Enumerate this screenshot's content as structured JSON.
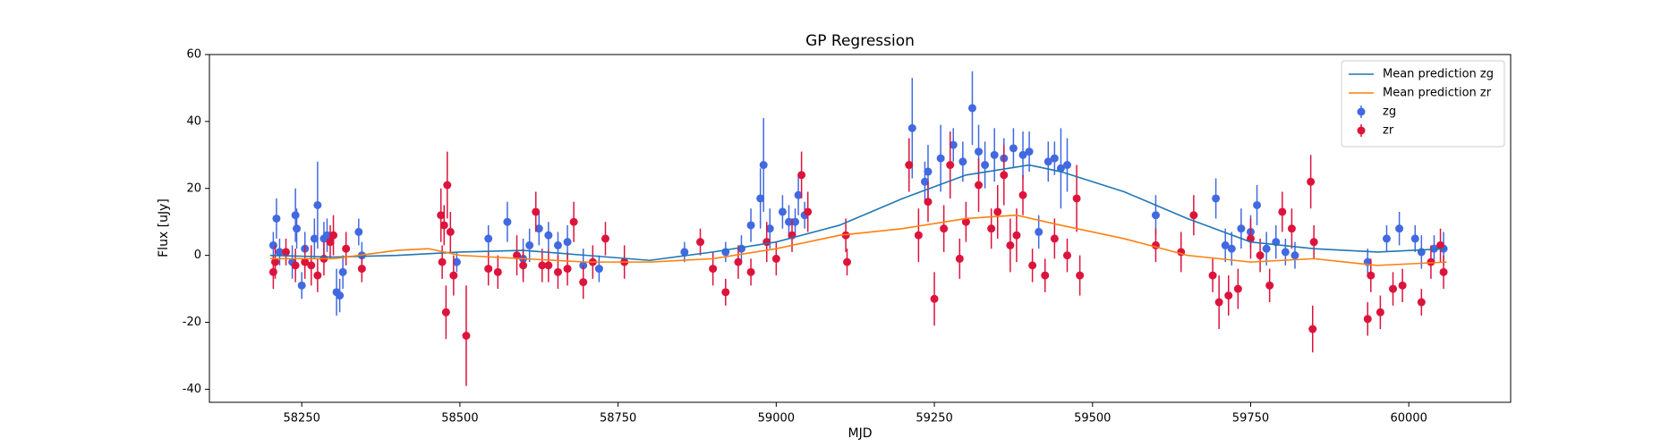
{
  "chart_data": {
    "type": "errorbar",
    "title": "GP Regression",
    "x_label": "MJD",
    "y_label": "Flux [uJy]",
    "xlim": [
      58104,
      60161
    ],
    "ylim": [
      -43.9,
      60
    ],
    "xticks": [
      58250,
      58500,
      58750,
      59000,
      59250,
      59500,
      59750,
      60000
    ],
    "yticks": [
      -40,
      -20,
      0,
      20,
      40,
      60
    ],
    "legend": "upper right",
    "series": [
      {
        "name": "Mean prediction zg",
        "style": "line",
        "color": "#1f77b4",
        "x": [
          58200,
          58300,
          58400,
          58500,
          58600,
          58700,
          58800,
          58900,
          59000,
          59100,
          59200,
          59300,
          59400,
          59450,
          59550,
          59650,
          59750,
          59850,
          59950,
          60060
        ],
        "values": [
          0,
          -0.5,
          0,
          1,
          1.5,
          0,
          -1.5,
          1,
          4,
          9,
          17,
          24,
          27,
          25,
          19,
          11,
          4,
          2,
          1,
          2
        ]
      },
      {
        "name": "Mean prediction zr",
        "style": "line",
        "color": "#ff7f0e",
        "x": [
          58200,
          58300,
          58400,
          58450,
          58500,
          58600,
          58700,
          58800,
          58900,
          59000,
          59100,
          59200,
          59300,
          59380,
          59450,
          59550,
          59650,
          59750,
          59850,
          59950,
          60060
        ],
        "values": [
          -1,
          -1,
          1.5,
          2,
          0,
          -1,
          -2,
          -2,
          -1,
          2,
          6,
          8,
          11,
          12,
          9,
          5,
          0,
          -2,
          -1,
          -3,
          -2
        ]
      },
      {
        "name": "zg",
        "style": "errorbar",
        "color": "#4169e1",
        "x": [
          58205,
          58210,
          58215,
          58235,
          58240,
          58242,
          58250,
          58255,
          58270,
          58275,
          58285,
          58290,
          58305,
          58310,
          58315,
          58340,
          58345,
          58495,
          58545,
          58575,
          58600,
          58610,
          58625,
          58640,
          58655,
          58670,
          58695,
          58720,
          58855,
          58920,
          58945,
          58960,
          58975,
          58980,
          58990,
          59010,
          59020,
          59030,
          59035,
          59045,
          59215,
          59235,
          59240,
          59260,
          59280,
          59295,
          59310,
          59320,
          59330,
          59345,
          59360,
          59375,
          59390,
          59400,
          59415,
          59430,
          59440,
          59450,
          59460,
          59600,
          59695,
          59710,
          59720,
          59735,
          59750,
          59760,
          59775,
          59790,
          59805,
          59820,
          59935,
          59965,
          59985,
          60010,
          60020,
          60040,
          60055
        ],
        "values": [
          3,
          11,
          1,
          -2,
          12,
          8,
          -9,
          2,
          5,
          15,
          5,
          6,
          -11,
          -12,
          -5,
          7,
          0,
          -2,
          5,
          10,
          -1,
          3,
          8,
          6,
          3,
          4,
          -3,
          -4,
          1,
          1,
          2,
          9,
          17,
          27,
          8,
          13,
          10,
          10,
          18,
          12,
          38,
          22,
          25,
          29,
          33,
          28,
          44,
          31,
          27,
          30,
          29,
          32,
          30,
          31,
          7,
          28,
          29,
          26,
          27,
          12,
          17,
          3,
          2,
          8,
          7,
          15,
          2,
          4,
          1,
          0,
          -2,
          5,
          8,
          5,
          1,
          2,
          2
        ],
        "errors": [
          4,
          6,
          4,
          5,
          8,
          6,
          4,
          5,
          6,
          13,
          5,
          5,
          7,
          5,
          5,
          4,
          4,
          3,
          4,
          6,
          6,
          5,
          5,
          4,
          4,
          5,
          5,
          4,
          3,
          3,
          4,
          5,
          9,
          14,
          6,
          5,
          5,
          4,
          6,
          4,
          15,
          6,
          8,
          10,
          5,
          6,
          11,
          8,
          7,
          8,
          6,
          6,
          7,
          6,
          5,
          6,
          5,
          12,
          8,
          6,
          6,
          5,
          5,
          6,
          5,
          6,
          5,
          5,
          4,
          4,
          4,
          4,
          5,
          4,
          5,
          4,
          5
        ]
      },
      {
        "name": "zr",
        "style": "errorbar",
        "color": "#dc143c",
        "x": [
          58205,
          58208,
          58225,
          58240,
          58255,
          58265,
          58275,
          58285,
          58295,
          58300,
          58320,
          58345,
          58470,
          58472,
          58475,
          58478,
          58480,
          58485,
          58490,
          58510,
          58545,
          58560,
          58590,
          58600,
          58620,
          58630,
          58640,
          58655,
          58670,
          58680,
          58695,
          58710,
          58730,
          58760,
          58880,
          58900,
          58920,
          58940,
          58960,
          58985,
          59000,
          59025,
          59040,
          59050,
          59110,
          59112,
          59210,
          59225,
          59240,
          59250,
          59265,
          59275,
          59290,
          59300,
          59320,
          59340,
          59350,
          59360,
          59370,
          59380,
          59390,
          59405,
          59425,
          59440,
          59460,
          59475,
          59480,
          59600,
          59640,
          59660,
          59690,
          59700,
          59715,
          59730,
          59750,
          59765,
          59780,
          59800,
          59815,
          59845,
          59848,
          59850,
          59935,
          59940,
          59955,
          59975,
          59990,
          60020,
          60035,
          60050,
          60055
        ],
        "values": [
          -5,
          -2,
          1,
          -3,
          -2,
          -3,
          -6,
          -1,
          4,
          6,
          2,
          -4,
          12,
          -2,
          9,
          -17,
          21,
          7,
          -6,
          -24,
          -4,
          -5,
          0,
          -3,
          13,
          -3,
          -3,
          -5,
          -4,
          10,
          -8,
          -2,
          5,
          -2,
          4,
          -4,
          -11,
          -2,
          -5,
          4,
          -1,
          6,
          24,
          13,
          6,
          -2,
          27,
          6,
          16,
          -13,
          8,
          27,
          -1,
          10,
          21,
          8,
          13,
          24,
          3,
          6,
          18,
          -3,
          -6,
          5,
          0,
          17,
          -6,
          3,
          1,
          12,
          -6,
          -14,
          -12,
          -10,
          5,
          0,
          -9,
          13,
          8,
          22,
          -22,
          4,
          -19,
          -6,
          -17,
          -10,
          -9,
          -14,
          -2,
          3,
          -5
        ],
        "errors": [
          5,
          5,
          4,
          5,
          5,
          6,
          5,
          5,
          5,
          6,
          5,
          4,
          8,
          5,
          6,
          8,
          10,
          6,
          6,
          15,
          5,
          5,
          6,
          5,
          6,
          5,
          5,
          5,
          5,
          6,
          5,
          5,
          5,
          5,
          4,
          5,
          4,
          5,
          4,
          6,
          5,
          5,
          7,
          6,
          5,
          4,
          8,
          8,
          6,
          8,
          7,
          10,
          6,
          6,
          8,
          6,
          8,
          9,
          8,
          8,
          6,
          5,
          5,
          6,
          5,
          10,
          6,
          5,
          6,
          6,
          5,
          8,
          6,
          6,
          6,
          5,
          5,
          6,
          6,
          8,
          7,
          5,
          5,
          5,
          5,
          5,
          5,
          4,
          5,
          5,
          5
        ]
      }
    ]
  }
}
